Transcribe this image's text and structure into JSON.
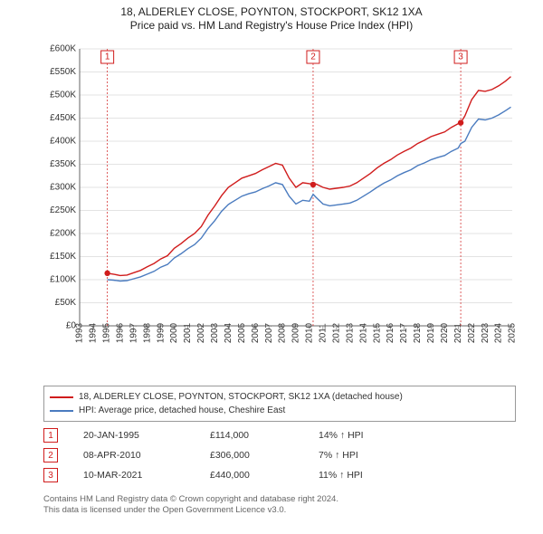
{
  "title": {
    "line1": "18, ALDERLEY CLOSE, POYNTON, STOCKPORT, SK12 1XA",
    "line2": "Price paid vs. HM Land Registry's House Price Index (HPI)"
  },
  "chart": {
    "type": "line",
    "background_color": "#ffffff",
    "grid_color": "#c8c8c8",
    "axis_color": "#666666",
    "marker_dash_color": "#d01c1c",
    "x": {
      "min": 1993,
      "max": 2025,
      "ticks": [
        1993,
        1994,
        1995,
        1996,
        1997,
        1998,
        1999,
        2000,
        2001,
        2002,
        2003,
        2004,
        2005,
        2006,
        2007,
        2008,
        2009,
        2010,
        2011,
        2012,
        2013,
        2014,
        2015,
        2016,
        2017,
        2018,
        2019,
        2020,
        2021,
        2022,
        2023,
        2024,
        2025
      ]
    },
    "y": {
      "min": 0,
      "max": 600000,
      "step": 50000,
      "tick_labels": [
        "£0",
        "£50K",
        "£100K",
        "£150K",
        "£200K",
        "£250K",
        "£300K",
        "£350K",
        "£400K",
        "£450K",
        "£500K",
        "£550K",
        "£600K"
      ]
    },
    "series": [
      {
        "name": "property",
        "color": "#d01c1c",
        "line_width": 1.4,
        "points": [
          [
            1995.05,
            114000
          ],
          [
            1995.5,
            112000
          ],
          [
            1996,
            109000
          ],
          [
            1996.5,
            110000
          ],
          [
            1997,
            115000
          ],
          [
            1997.5,
            120000
          ],
          [
            1998,
            128000
          ],
          [
            1998.5,
            135000
          ],
          [
            1999,
            145000
          ],
          [
            1999.5,
            152000
          ],
          [
            2000,
            168000
          ],
          [
            2000.5,
            178000
          ],
          [
            2001,
            190000
          ],
          [
            2001.5,
            200000
          ],
          [
            2002,
            215000
          ],
          [
            2002.5,
            240000
          ],
          [
            2003,
            260000
          ],
          [
            2003.5,
            282000
          ],
          [
            2004,
            300000
          ],
          [
            2004.5,
            310000
          ],
          [
            2005,
            320000
          ],
          [
            2005.5,
            325000
          ],
          [
            2006,
            330000
          ],
          [
            2006.5,
            338000
          ],
          [
            2007,
            345000
          ],
          [
            2007.5,
            352000
          ],
          [
            2008,
            348000
          ],
          [
            2008.5,
            320000
          ],
          [
            2009,
            300000
          ],
          [
            2009.5,
            310000
          ],
          [
            2010,
            308000
          ],
          [
            2010.27,
            306000
          ],
          [
            2010.5,
            307000
          ],
          [
            2011,
            300000
          ],
          [
            2011.5,
            296000
          ],
          [
            2012,
            298000
          ],
          [
            2012.5,
            300000
          ],
          [
            2013,
            303000
          ],
          [
            2013.5,
            310000
          ],
          [
            2014,
            320000
          ],
          [
            2014.5,
            330000
          ],
          [
            2015,
            342000
          ],
          [
            2015.5,
            352000
          ],
          [
            2016,
            360000
          ],
          [
            2016.5,
            370000
          ],
          [
            2017,
            378000
          ],
          [
            2017.5,
            385000
          ],
          [
            2018,
            395000
          ],
          [
            2018.5,
            402000
          ],
          [
            2019,
            410000
          ],
          [
            2019.5,
            415000
          ],
          [
            2020,
            420000
          ],
          [
            2020.5,
            430000
          ],
          [
            2021,
            438000
          ],
          [
            2021.19,
            440000
          ],
          [
            2021.5,
            455000
          ],
          [
            2022,
            490000
          ],
          [
            2022.5,
            510000
          ],
          [
            2023,
            508000
          ],
          [
            2023.5,
            512000
          ],
          [
            2024,
            520000
          ],
          [
            2024.5,
            530000
          ],
          [
            2024.9,
            540000
          ]
        ]
      },
      {
        "name": "hpi",
        "color": "#4a7bbf",
        "line_width": 1.4,
        "points": [
          [
            1995.05,
            100000
          ],
          [
            1995.5,
            99000
          ],
          [
            1996,
            97000
          ],
          [
            1996.5,
            98000
          ],
          [
            1997,
            102000
          ],
          [
            1997.5,
            106000
          ],
          [
            1998,
            112000
          ],
          [
            1998.5,
            118000
          ],
          [
            1999,
            127000
          ],
          [
            1999.5,
            133000
          ],
          [
            2000,
            147000
          ],
          [
            2000.5,
            156000
          ],
          [
            2001,
            167000
          ],
          [
            2001.5,
            176000
          ],
          [
            2002,
            190000
          ],
          [
            2002.5,
            211000
          ],
          [
            2003,
            228000
          ],
          [
            2003.5,
            248000
          ],
          [
            2004,
            263000
          ],
          [
            2004.5,
            272000
          ],
          [
            2005,
            281000
          ],
          [
            2005.5,
            286000
          ],
          [
            2006,
            290000
          ],
          [
            2006.5,
            297000
          ],
          [
            2007,
            303000
          ],
          [
            2007.5,
            310000
          ],
          [
            2008,
            306000
          ],
          [
            2008.5,
            281000
          ],
          [
            2009,
            264000
          ],
          [
            2009.5,
            272000
          ],
          [
            2010,
            270000
          ],
          [
            2010.27,
            285000
          ],
          [
            2010.5,
            278000
          ],
          [
            2011,
            264000
          ],
          [
            2011.5,
            260000
          ],
          [
            2012,
            262000
          ],
          [
            2012.5,
            264000
          ],
          [
            2013,
            266000
          ],
          [
            2013.5,
            272000
          ],
          [
            2014,
            281000
          ],
          [
            2014.5,
            290000
          ],
          [
            2015,
            300000
          ],
          [
            2015.5,
            309000
          ],
          [
            2016,
            316000
          ],
          [
            2016.5,
            325000
          ],
          [
            2017,
            332000
          ],
          [
            2017.5,
            338000
          ],
          [
            2018,
            347000
          ],
          [
            2018.5,
            353000
          ],
          [
            2019,
            360000
          ],
          [
            2019.5,
            365000
          ],
          [
            2020,
            369000
          ],
          [
            2020.5,
            378000
          ],
          [
            2021,
            385000
          ],
          [
            2021.19,
            395000
          ],
          [
            2021.5,
            400000
          ],
          [
            2022,
            430000
          ],
          [
            2022.5,
            448000
          ],
          [
            2023,
            446000
          ],
          [
            2023.5,
            450000
          ],
          [
            2024,
            457000
          ],
          [
            2024.5,
            466000
          ],
          [
            2024.9,
            474000
          ]
        ]
      }
    ],
    "sale_markers": [
      {
        "n": "1",
        "year": 1995.05,
        "price": 114000
      },
      {
        "n": "2",
        "year": 2010.27,
        "price": 306000
      },
      {
        "n": "3",
        "year": 2021.19,
        "price": 440000
      }
    ]
  },
  "legend": {
    "items": [
      {
        "color": "#d01c1c",
        "label": "18, ALDERLEY CLOSE, POYNTON, STOCKPORT, SK12 1XA (detached house)"
      },
      {
        "color": "#4a7bbf",
        "label": "HPI: Average price, detached house, Cheshire East"
      }
    ]
  },
  "sales": [
    {
      "n": "1",
      "date": "20-JAN-1995",
      "price": "£114,000",
      "hpi": "14% ↑ HPI"
    },
    {
      "n": "2",
      "date": "08-APR-2010",
      "price": "£306,000",
      "hpi": "7% ↑ HPI"
    },
    {
      "n": "3",
      "date": "10-MAR-2021",
      "price": "£440,000",
      "hpi": "11% ↑ HPI"
    }
  ],
  "footnote": {
    "line1": "Contains HM Land Registry data © Crown copyright and database right 2024.",
    "line2": "This data is licensed under the Open Government Licence v3.0."
  }
}
